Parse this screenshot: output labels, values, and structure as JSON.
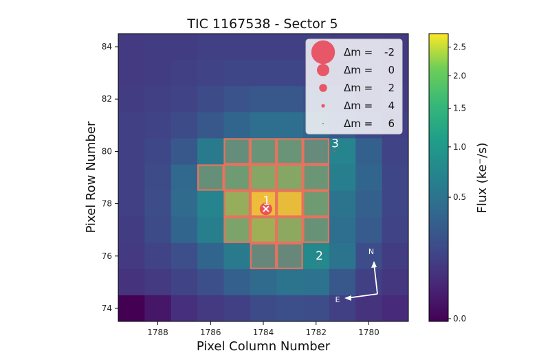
{
  "chart_data": {
    "type": "heatmap",
    "title": "TIC 1167538 - Sector 5",
    "xlabel": "Pixel Column Number",
    "ylabel": "Pixel Row Number",
    "xlim": [
      1789.5,
      1778.5
    ],
    "ylim": [
      73.5,
      84.5
    ],
    "x_inverted": true,
    "xticks": [
      1788,
      1786,
      1784,
      1782,
      1780
    ],
    "yticks": [
      74,
      76,
      78,
      80,
      82,
      84
    ],
    "colorbar": {
      "label": "Flux  (ke⁻/s)",
      "colormap": "viridis",
      "scale": "log-like",
      "range": [
        0.0,
        2.7
      ],
      "ticks": [
        {
          "value": 0.0,
          "label": "0.0"
        },
        {
          "value": 0.5,
          "label": "0.5"
        },
        {
          "value": 1.0,
          "label": "1.0"
        },
        {
          "value": 1.5,
          "label": "1.5"
        },
        {
          "value": 2.0,
          "label": "2.0"
        },
        {
          "value": 2.5,
          "label": "2.5"
        }
      ]
    },
    "columns": [
      1789,
      1788,
      1787,
      1786,
      1785,
      1784,
      1783,
      1782,
      1781,
      1780,
      1779
    ],
    "rows": [
      84,
      83,
      82,
      81,
      80,
      79,
      78,
      77,
      76,
      75,
      74
    ],
    "grid": [
      [
        0.08,
        0.09,
        0.09,
        0.1,
        0.1,
        0.1,
        0.1,
        0.1,
        0.09,
        0.09,
        0.08
      ],
      [
        0.08,
        0.09,
        0.1,
        0.11,
        0.12,
        0.12,
        0.12,
        0.11,
        0.1,
        0.09,
        0.08
      ],
      [
        0.09,
        0.1,
        0.11,
        0.14,
        0.18,
        0.2,
        0.2,
        0.17,
        0.13,
        0.1,
        0.09
      ],
      [
        0.1,
        0.11,
        0.14,
        0.2,
        0.28,
        0.35,
        0.35,
        0.28,
        0.2,
        0.13,
        0.1
      ],
      [
        0.1,
        0.13,
        0.2,
        0.45,
        0.8,
        0.95,
        0.95,
        0.75,
        0.55,
        0.25,
        0.11
      ],
      [
        0.1,
        0.14,
        0.3,
        0.85,
        1.1,
        1.4,
        1.4,
        1.0,
        0.5,
        0.28,
        0.12
      ],
      [
        0.1,
        0.15,
        0.32,
        0.55,
        1.6,
        2.6,
        2.5,
        1.1,
        0.4,
        0.25,
        0.12
      ],
      [
        0.09,
        0.14,
        0.28,
        0.5,
        1.3,
        1.7,
        1.5,
        0.9,
        0.35,
        0.22,
        0.11
      ],
      [
        0.08,
        0.11,
        0.16,
        0.28,
        0.45,
        0.7,
        0.7,
        0.6,
        0.4,
        0.15,
        0.09
      ],
      [
        0.06,
        0.08,
        0.11,
        0.16,
        0.25,
        0.32,
        0.4,
        0.38,
        0.2,
        0.1,
        0.07
      ],
      [
        0.0,
        0.01,
        0.05,
        0.08,
        0.1,
        0.14,
        0.16,
        0.15,
        0.1,
        0.06,
        0.04
      ]
    ],
    "aperture_pixels": [
      [
        1785,
        80
      ],
      [
        1784,
        80
      ],
      [
        1783,
        80
      ],
      [
        1782,
        80
      ],
      [
        1786,
        79
      ],
      [
        1785,
        79
      ],
      [
        1784,
        79
      ],
      [
        1783,
        79
      ],
      [
        1782,
        79
      ],
      [
        1785,
        78
      ],
      [
        1784,
        78
      ],
      [
        1783,
        78
      ],
      [
        1782,
        78
      ],
      [
        1785,
        77
      ],
      [
        1784,
        77
      ],
      [
        1783,
        77
      ],
      [
        1782,
        77
      ],
      [
        1784,
        76
      ],
      [
        1783,
        76
      ]
    ],
    "stars": [
      {
        "label": "1",
        "col": 1783.9,
        "row": 77.8,
        "dm": 0
      },
      {
        "label": "2",
        "col": 1781.9,
        "row": 75.7,
        "dm": 5
      },
      {
        "label": "3",
        "col": 1781.3,
        "row": 80.0,
        "dm": 5
      }
    ],
    "legend": {
      "placement": "top-right",
      "entries": [
        {
          "symbol": "Δm = ",
          "value": "-2"
        },
        {
          "symbol": "Δm = ",
          "value": "0"
        },
        {
          "symbol": "Δm = ",
          "value": "2"
        },
        {
          "symbol": "Δm = ",
          "value": "4"
        },
        {
          "symbol": "Δm = ",
          "value": "6"
        }
      ]
    },
    "compass": {
      "north": "N",
      "east": "E"
    },
    "colors": {
      "aperture": "#e8725e",
      "star": "#e8485a"
    }
  }
}
